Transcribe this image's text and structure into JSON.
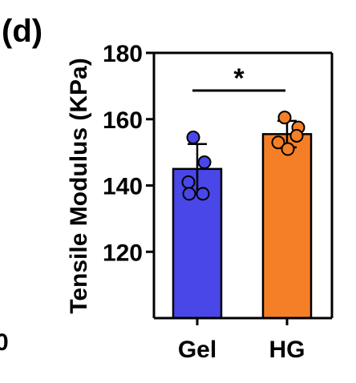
{
  "panel_label": "(d)",
  "edge_fragment": "0",
  "chart_data": {
    "type": "bar",
    "title": "",
    "xlabel": "",
    "ylabel": "Tensile Modulus (KPa)",
    "ylim": [
      100,
      180
    ],
    "yticks": [
      120,
      140,
      160,
      180
    ],
    "categories": [
      "Gel",
      "HG"
    ],
    "values": [
      145,
      155.5
    ],
    "errors": [
      7.5,
      4
    ],
    "colors": [
      "#4a47e8",
      "#f57f26"
    ],
    "points": [
      [
        154.5,
        147,
        141,
        137.5,
        137.5
      ],
      [
        160.5,
        157.5,
        155,
        153,
        151
      ]
    ],
    "significance": {
      "pair": [
        "Gel",
        "HG"
      ],
      "label": "*"
    },
    "grid": false,
    "legend": "none"
  }
}
